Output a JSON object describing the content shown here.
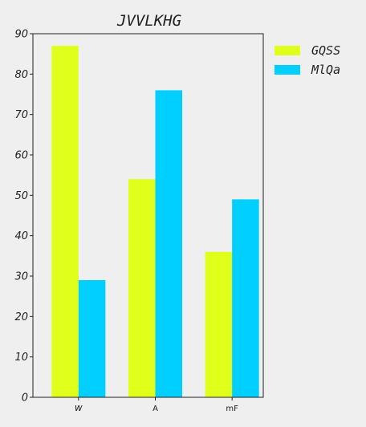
{
  "chart_data": {
    "type": "bar",
    "title": "JVVLKHG",
    "categories": [
      "w",
      "A",
      "mF"
    ],
    "series": [
      {
        "name": "GQSS",
        "color": "#e0ff1a",
        "values": [
          87,
          54,
          36
        ]
      },
      {
        "name": "MlQa",
        "color": "#00cfff",
        "values": [
          29,
          76,
          49
        ]
      }
    ],
    "xlabel": "",
    "ylabel": "",
    "ylim": [
      0,
      90
    ],
    "yticks": [
      0,
      10,
      20,
      30,
      40,
      50,
      60,
      70,
      80,
      90
    ],
    "grid": false,
    "legend": "outside-top-right"
  }
}
